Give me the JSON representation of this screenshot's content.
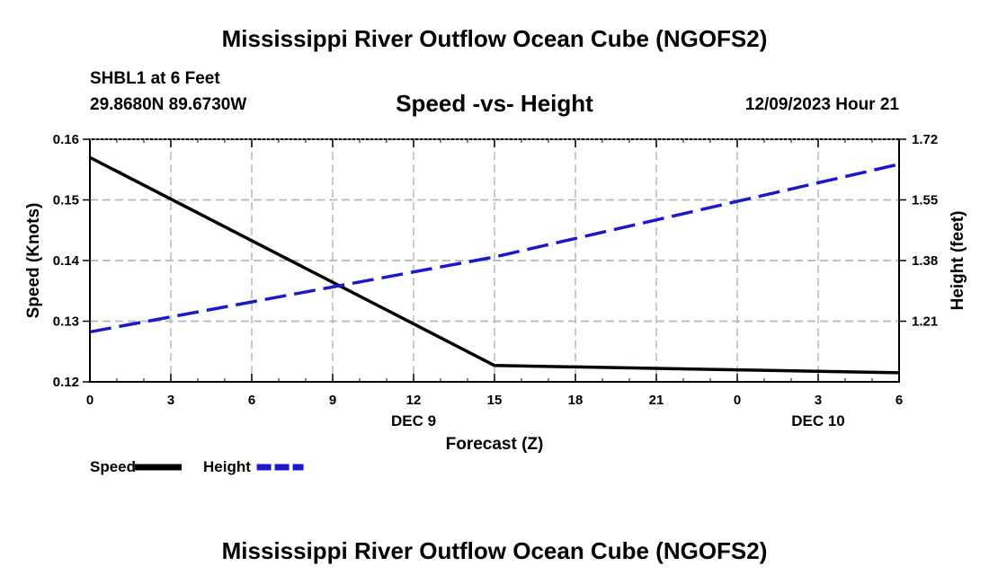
{
  "header": {
    "title": "Mississippi River Outflow Ocean Cube (NGOFS2)",
    "station": "SHBL1 at 6 Feet",
    "coords": "29.8680N  89.6730W",
    "subtitle": "Speed -vs- Height",
    "datetime": "12/09/2023 Hour 21"
  },
  "footer": {
    "title": "Mississippi River Outflow Ocean Cube (NGOFS2)"
  },
  "chart_data": {
    "type": "line",
    "title": "Speed -vs- Height",
    "xlabel": "Forecast (Z)",
    "ylabel": "Speed (Knots)",
    "y2label": "Height (feet)",
    "x": [
      0,
      15,
      30
    ],
    "x_ticks": [
      {
        "hours": 0,
        "label": "0"
      },
      {
        "hours": 3,
        "label": "3"
      },
      {
        "hours": 6,
        "label": "6"
      },
      {
        "hours": 9,
        "label": "9"
      },
      {
        "hours": 12,
        "label": "12"
      },
      {
        "hours": 15,
        "label": "15"
      },
      {
        "hours": 18,
        "label": "18"
      },
      {
        "hours": 21,
        "label": "21"
      },
      {
        "hours": 24,
        "label": "0"
      },
      {
        "hours": 27,
        "label": "3"
      },
      {
        "hours": 30,
        "label": "6"
      }
    ],
    "date_labels": [
      {
        "hours": 12,
        "label": "DEC 9"
      },
      {
        "hours": 27,
        "label": "DEC 10"
      }
    ],
    "xlim": [
      0,
      30
    ],
    "ylim": [
      0.12,
      0.16
    ],
    "y_ticks": [
      {
        "value": 0.12,
        "label": "0.12"
      },
      {
        "value": 0.13,
        "label": "0.13"
      },
      {
        "value": 0.14,
        "label": "0.14"
      },
      {
        "value": 0.15,
        "label": "0.15"
      },
      {
        "value": 0.16,
        "label": "0.16"
      }
    ],
    "y2lim": [
      1.04,
      1.72
    ],
    "y2_ticks": [
      {
        "value": 1.21,
        "label": "1.21"
      },
      {
        "value": 1.38,
        "label": "1.38"
      },
      {
        "value": 1.55,
        "label": "1.55"
      },
      {
        "value": 1.72,
        "label": "1.72"
      }
    ],
    "grid": true,
    "series": [
      {
        "name": "Speed",
        "axis": "left",
        "color": "#000000",
        "dash": "solid",
        "x": [
          0,
          15,
          30
        ],
        "values": [
          0.157,
          0.1227,
          0.1215
        ]
      },
      {
        "name": "Height",
        "axis": "right",
        "color": "#1a1acc",
        "dash": "dashed",
        "x": [
          0,
          15,
          30
        ],
        "values": [
          1.18,
          1.39,
          1.65
        ]
      }
    ],
    "legend": [
      {
        "name": "Speed",
        "color": "#000000",
        "dash": "solid"
      },
      {
        "name": "Height",
        "color": "#1a1acc",
        "dash": "dashed"
      }
    ]
  }
}
